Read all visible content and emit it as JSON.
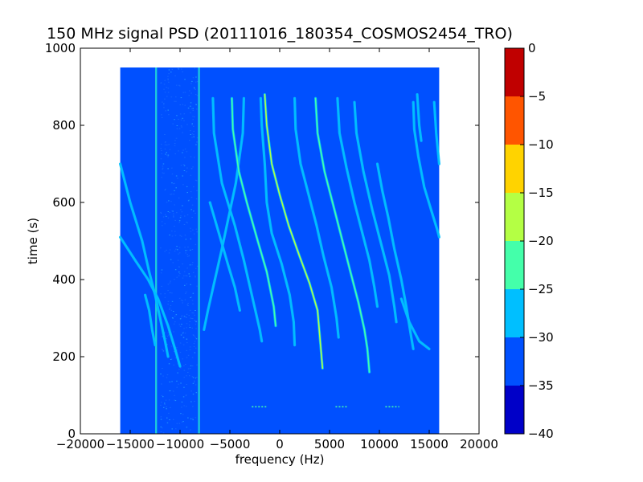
{
  "chart_data": {
    "type": "heatmap",
    "title": "150 MHz signal PSD (20111016_180354_COSMOS2454_TRO)",
    "xlabel": "frequency (Hz)",
    "ylabel": "time (s)",
    "xlim": [
      -20000,
      20000
    ],
    "ylim": [
      0,
      1000
    ],
    "xticks": [
      -20000,
      -15000,
      -10000,
      -5000,
      0,
      5000,
      10000,
      15000,
      20000
    ],
    "yticks": [
      0,
      200,
      400,
      600,
      800,
      1000
    ],
    "xtick_labels": [
      "−20000",
      "−15000",
      "−10000",
      "−5000",
      "0",
      "5000",
      "10000",
      "15000",
      "20000"
    ],
    "ytick_labels": [
      "0",
      "200",
      "400",
      "600",
      "800",
      "1000"
    ],
    "data_extent": {
      "x": [
        -16000,
        16000
      ],
      "y": [
        0,
        950
      ]
    },
    "background_level": -32.5,
    "colorbar": {
      "levels": [
        0,
        -5,
        -10,
        -15,
        -20,
        -25,
        -30,
        -35,
        -40
      ],
      "tick_labels": [
        "0",
        "−5",
        "−10",
        "−15",
        "−20",
        "−25",
        "−30",
        "−35",
        "−40"
      ],
      "bands": [
        {
          "range": [
            -5,
            0
          ],
          "color": "#c00000"
        },
        {
          "range": [
            -10,
            -5
          ],
          "color": "#ff5500"
        },
        {
          "range": [
            -15,
            -10
          ],
          "color": "#ffd300"
        },
        {
          "range": [
            -20,
            -15
          ],
          "color": "#b4ff44"
        },
        {
          "range": [
            -25,
            -20
          ],
          "color": "#44ffaa"
        },
        {
          "range": [
            -30,
            -25
          ],
          "color": "#00bfff"
        },
        {
          "range": [
            -35,
            -30
          ],
          "color": "#0050ff"
        },
        {
          "range": [
            -40,
            -35
          ],
          "color": "#0000c8"
        }
      ]
    },
    "vertical_lines": [
      {
        "x": -12400,
        "y_range": [
          0,
          950
        ],
        "level": -28
      },
      {
        "x": -8100,
        "y_range": [
          0,
          950
        ],
        "level": -28
      }
    ],
    "noise_band": {
      "x_range": [
        -12000,
        -8300
      ],
      "y_range": [
        0,
        950
      ]
    },
    "traces": [
      {
        "points": [
          [
            -16000,
            700
          ],
          [
            -15000,
            600
          ],
          [
            -13800,
            500
          ],
          [
            -13100,
            420
          ],
          [
            -12500,
            360
          ],
          [
            -12000,
            300
          ],
          [
            -11500,
            240
          ],
          [
            -11200,
            200
          ]
        ],
        "level": -26
      },
      {
        "points": [
          [
            -16000,
            510
          ],
          [
            -14500,
            450
          ],
          [
            -13200,
            400
          ],
          [
            -12200,
            350
          ],
          [
            -11200,
            280
          ],
          [
            -10500,
            220
          ],
          [
            -10000,
            175
          ]
        ],
        "level": -28
      },
      {
        "points": [
          [
            -13500,
            360
          ],
          [
            -13100,
            320
          ],
          [
            -12800,
            270
          ],
          [
            -12500,
            230
          ]
        ],
        "level": -30
      },
      {
        "points": [
          [
            -3600,
            870
          ],
          [
            -3700,
            780
          ],
          [
            -4400,
            650
          ],
          [
            -5800,
            480
          ],
          [
            -6500,
            400
          ],
          [
            -7200,
            320
          ],
          [
            -7600,
            270
          ]
        ],
        "level": -27
      },
      {
        "points": [
          [
            -7000,
            600
          ],
          [
            -6100,
            520
          ],
          [
            -5200,
            440
          ],
          [
            -4500,
            380
          ],
          [
            -4000,
            320
          ]
        ],
        "level": -30
      },
      {
        "points": [
          [
            -6700,
            870
          ],
          [
            -6600,
            780
          ],
          [
            -5800,
            650
          ],
          [
            -4500,
            540
          ],
          [
            -3600,
            450
          ],
          [
            -2800,
            360
          ],
          [
            -2000,
            270
          ],
          [
            -1800,
            240
          ]
        ],
        "level": -27
      },
      {
        "points": [
          [
            -4800,
            870
          ],
          [
            -4700,
            790
          ],
          [
            -4100,
            680
          ],
          [
            -3300,
            600
          ],
          [
            -2200,
            500
          ],
          [
            -1300,
            420
          ],
          [
            -600,
            330
          ],
          [
            -400,
            280
          ]
        ],
        "level": -24
      },
      {
        "points": [
          [
            -1900,
            870
          ],
          [
            -1800,
            800
          ],
          [
            -1500,
            700
          ],
          [
            -1300,
            600
          ],
          [
            -800,
            520
          ],
          [
            200,
            440
          ],
          [
            1000,
            360
          ],
          [
            1400,
            290
          ],
          [
            1500,
            230
          ]
        ],
        "level": -26
      },
      {
        "points": [
          [
            -1500,
            880
          ],
          [
            -1300,
            800
          ],
          [
            -800,
            700
          ],
          [
            0,
            620
          ],
          [
            900,
            540
          ],
          [
            2000,
            460
          ],
          [
            3000,
            390
          ],
          [
            3800,
            320
          ],
          [
            4000,
            260
          ],
          [
            4100,
            230
          ],
          [
            4300,
            170
          ]
        ],
        "level": -16
      },
      {
        "points": [
          [
            1500,
            870
          ],
          [
            1600,
            790
          ],
          [
            2100,
            700
          ],
          [
            2900,
            620
          ],
          [
            3700,
            540
          ],
          [
            4400,
            460
          ],
          [
            5200,
            380
          ],
          [
            5700,
            300
          ],
          [
            5900,
            250
          ]
        ],
        "level": -26
      },
      {
        "points": [
          [
            3600,
            870
          ],
          [
            3800,
            780
          ],
          [
            4500,
            680
          ],
          [
            5400,
            590
          ],
          [
            6300,
            500
          ],
          [
            7100,
            420
          ],
          [
            7900,
            340
          ],
          [
            8500,
            270
          ],
          [
            8800,
            220
          ],
          [
            9000,
            160
          ]
        ],
        "level": -25
      },
      {
        "points": [
          [
            5800,
            870
          ],
          [
            6000,
            780
          ],
          [
            6700,
            690
          ],
          [
            7500,
            600
          ],
          [
            8300,
            520
          ],
          [
            9000,
            450
          ],
          [
            9500,
            380
          ],
          [
            9800,
            330
          ]
        ],
        "level": -28
      },
      {
        "points": [
          [
            7500,
            860
          ],
          [
            7700,
            780
          ],
          [
            8400,
            680
          ],
          [
            9300,
            580
          ],
          [
            10200,
            490
          ],
          [
            11000,
            410
          ],
          [
            11500,
            330
          ],
          [
            11700,
            290
          ]
        ],
        "level": -27
      },
      {
        "points": [
          [
            9800,
            700
          ],
          [
            10300,
            630
          ],
          [
            10900,
            560
          ],
          [
            11500,
            480
          ],
          [
            12200,
            400
          ],
          [
            12700,
            330
          ],
          [
            13200,
            250
          ],
          [
            13400,
            220
          ]
        ],
        "level": -28
      },
      {
        "points": [
          [
            13400,
            860
          ],
          [
            13500,
            790
          ],
          [
            13900,
            720
          ],
          [
            14500,
            640
          ],
          [
            15200,
            580
          ],
          [
            15800,
            530
          ],
          [
            16000,
            510
          ]
        ],
        "level": -27
      },
      {
        "points": [
          [
            15500,
            860
          ],
          [
            15700,
            780
          ],
          [
            16000,
            700
          ]
        ],
        "level": -27
      },
      {
        "points": [
          [
            13800,
            880
          ],
          [
            14000,
            800
          ],
          [
            14200,
            760
          ]
        ],
        "level": -28
      },
      {
        "points": [
          [
            12200,
            350
          ],
          [
            13000,
            290
          ],
          [
            14000,
            240
          ],
          [
            15000,
            220
          ]
        ],
        "level": -30
      }
    ],
    "spur_marks": [
      {
        "x_range": [
          -2800,
          -1200
        ],
        "y": 70
      },
      {
        "x_range": [
          5600,
          6800
        ],
        "y": 70
      },
      {
        "x_range": [
          10600,
          12000
        ],
        "y": 70
      }
    ],
    "grid": false,
    "legend": "none"
  }
}
